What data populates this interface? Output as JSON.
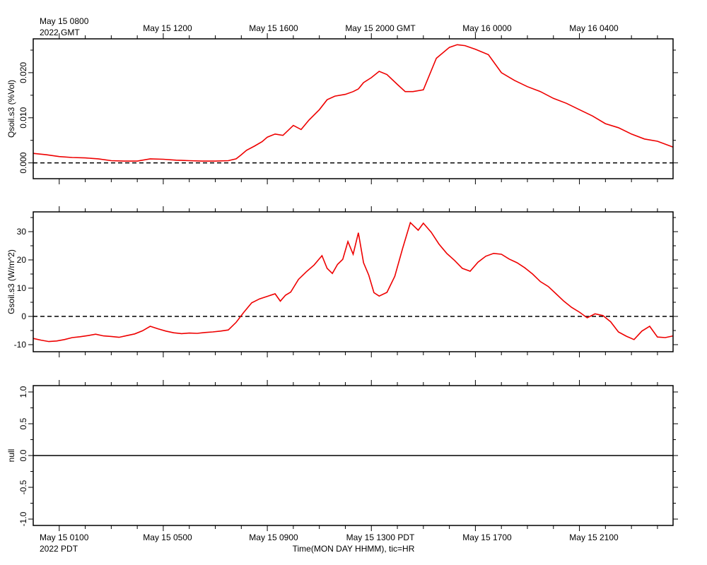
{
  "top_axis": {
    "first_label_line1": "May 15 0800",
    "first_label_line2": "2022 GMT",
    "labels": [
      "May 15 1200",
      "May 15 1600",
      "May 15 2000 GMT",
      "May 16 0000",
      "May 16 0400"
    ]
  },
  "bottom_axis": {
    "first_label_line1": "May 15 0100",
    "first_label_line2": "2022 PDT",
    "labels": [
      "May 15 0500",
      "May 15 0900",
      "May 15 1300 PDT",
      "May 15 1700",
      "May 15 2100"
    ],
    "title": "Time(MON DAY HHMM), tic=HR"
  },
  "colors": {
    "series": "#ee0000",
    "axis": "#000000",
    "zero_line": "#000000"
  },
  "chart_data": [
    {
      "type": "line",
      "ylabel": "Qsoil.s3 (%Vol)",
      "ylim": [
        -0.0035,
        0.0275
      ],
      "yticks": [
        0.0,
        0.01,
        0.02
      ],
      "ytick_labels": [
        "0.000",
        "0.010",
        "0.020"
      ],
      "x_unit": "hours since May 15 0000 PDT",
      "xlim": [
        0.0,
        24.6
      ],
      "zero_line": "dashed",
      "series": [
        {
          "x": [
            0,
            0.5,
            1,
            1.5,
            2,
            2.5,
            3,
            3.5,
            4,
            4.5,
            5,
            5.5,
            6,
            6.5,
            7,
            7.5,
            7.8,
            8,
            8.2,
            8.5,
            8.8,
            9.0,
            9.3,
            9.6,
            10.0,
            10.3,
            10.6,
            11.0,
            11.3,
            11.6,
            12.0,
            12.3,
            12.5,
            12.7,
            13.0,
            13.3,
            13.6,
            14.0,
            14.3,
            14.6,
            15.0,
            15.5,
            16.0,
            16.3,
            16.6,
            17.0,
            17.5,
            18.0,
            18.5,
            19.0,
            19.5,
            20.0,
            20.5,
            21.0,
            21.5,
            22.0,
            22.5,
            23.0,
            23.5,
            24.0,
            24.6
          ],
          "y": [
            0.0021,
            0.0018,
            0.0014,
            0.0012,
            0.0011,
            0.0009,
            0.0005,
            0.0004,
            0.0004,
            0.0009,
            0.0008,
            0.0006,
            0.0005,
            0.0004,
            0.0004,
            0.0005,
            0.0009,
            0.0018,
            0.0028,
            0.0037,
            0.0047,
            0.0057,
            0.0064,
            0.0061,
            0.0083,
            0.0074,
            0.0095,
            0.0118,
            0.014,
            0.0148,
            0.0152,
            0.0158,
            0.0164,
            0.0178,
            0.0189,
            0.0203,
            0.0196,
            0.0174,
            0.0158,
            0.0158,
            0.0162,
            0.0232,
            0.0256,
            0.0262,
            0.026,
            0.0252,
            0.024,
            0.02,
            0.0183,
            0.0169,
            0.0158,
            0.0143,
            0.0132,
            0.0118,
            0.0104,
            0.0087,
            0.0078,
            0.0064,
            0.0053,
            0.0048,
            0.0035
          ]
        }
      ]
    },
    {
      "type": "line",
      "ylabel": "Gsoil.s3 (W/m^2)",
      "ylim": [
        -12.5,
        37
      ],
      "yticks": [
        -10,
        0,
        10,
        20,
        30
      ],
      "ytick_labels": [
        "-10",
        "0",
        "10",
        "20",
        "30"
      ],
      "x_unit": "hours since May 15 0000 PDT",
      "xlim": [
        0.0,
        24.6
      ],
      "zero_line": "dashed",
      "series": [
        {
          "x": [
            0,
            0.3,
            0.6,
            0.9,
            1.2,
            1.5,
            1.8,
            2.1,
            2.4,
            2.7,
            3.0,
            3.3,
            3.6,
            3.9,
            4.2,
            4.5,
            4.8,
            5.1,
            5.4,
            5.7,
            6.0,
            6.3,
            6.6,
            6.9,
            7.2,
            7.5,
            7.8,
            8.1,
            8.4,
            8.7,
            9.0,
            9.3,
            9.5,
            9.7,
            9.9,
            10.2,
            10.5,
            10.8,
            11.1,
            11.3,
            11.5,
            11.7,
            11.9,
            12.1,
            12.3,
            12.5,
            12.7,
            12.9,
            13.1,
            13.3,
            13.6,
            13.9,
            14.2,
            14.5,
            14.8,
            15.0,
            15.3,
            15.6,
            15.9,
            16.2,
            16.5,
            16.8,
            17.1,
            17.4,
            17.7,
            18.0,
            18.3,
            18.6,
            18.9,
            19.2,
            19.5,
            19.8,
            20.1,
            20.4,
            20.7,
            21.0,
            21.3,
            21.6,
            21.9,
            22.2,
            22.5,
            22.8,
            23.1,
            23.4,
            23.7,
            24.0,
            24.3,
            24.6
          ],
          "y": [
            -7.8,
            -8.4,
            -8.9,
            -8.7,
            -8.2,
            -7.5,
            -7.2,
            -6.8,
            -6.3,
            -6.9,
            -7.1,
            -7.4,
            -6.8,
            -6.2,
            -5.1,
            -3.5,
            -4.4,
            -5.2,
            -5.8,
            -6.1,
            -5.9,
            -6.0,
            -5.7,
            -5.5,
            -5.2,
            -4.8,
            -2.1,
            1.5,
            4.8,
            6.2,
            7.1,
            8.0,
            5.4,
            7.5,
            8.6,
            13.1,
            15.8,
            18.2,
            21.5,
            17.0,
            15.2,
            18.4,
            20.2,
            26.5,
            22.0,
            29.6,
            19.0,
            14.6,
            8.4,
            7.2,
            8.5,
            14.2,
            24.0,
            33.2,
            30.5,
            33.0,
            29.8,
            25.6,
            22.3,
            19.8,
            17.0,
            16.0,
            19.2,
            21.3,
            22.3,
            22.0,
            20.3,
            19.0,
            17.2,
            15.0,
            12.3,
            10.6,
            8.0,
            5.4,
            3.2,
            1.5,
            -0.5,
            0.9,
            0.3,
            -1.9,
            -5.5,
            -7.0,
            -8.2,
            -5.2,
            -3.5,
            -7.3,
            -7.5,
            -6.9
          ]
        }
      ]
    },
    {
      "type": "line",
      "ylabel": "null",
      "ylim": [
        -1.1,
        1.1
      ],
      "yticks": [
        -1.0,
        -0.5,
        0.0,
        0.5,
        1.0
      ],
      "ytick_labels": [
        "-1.0",
        "-0.5",
        "0.0",
        "0.5",
        "1.0"
      ],
      "xlim": [
        0.0,
        24.6
      ],
      "zero_line": "solid",
      "series": []
    }
  ]
}
